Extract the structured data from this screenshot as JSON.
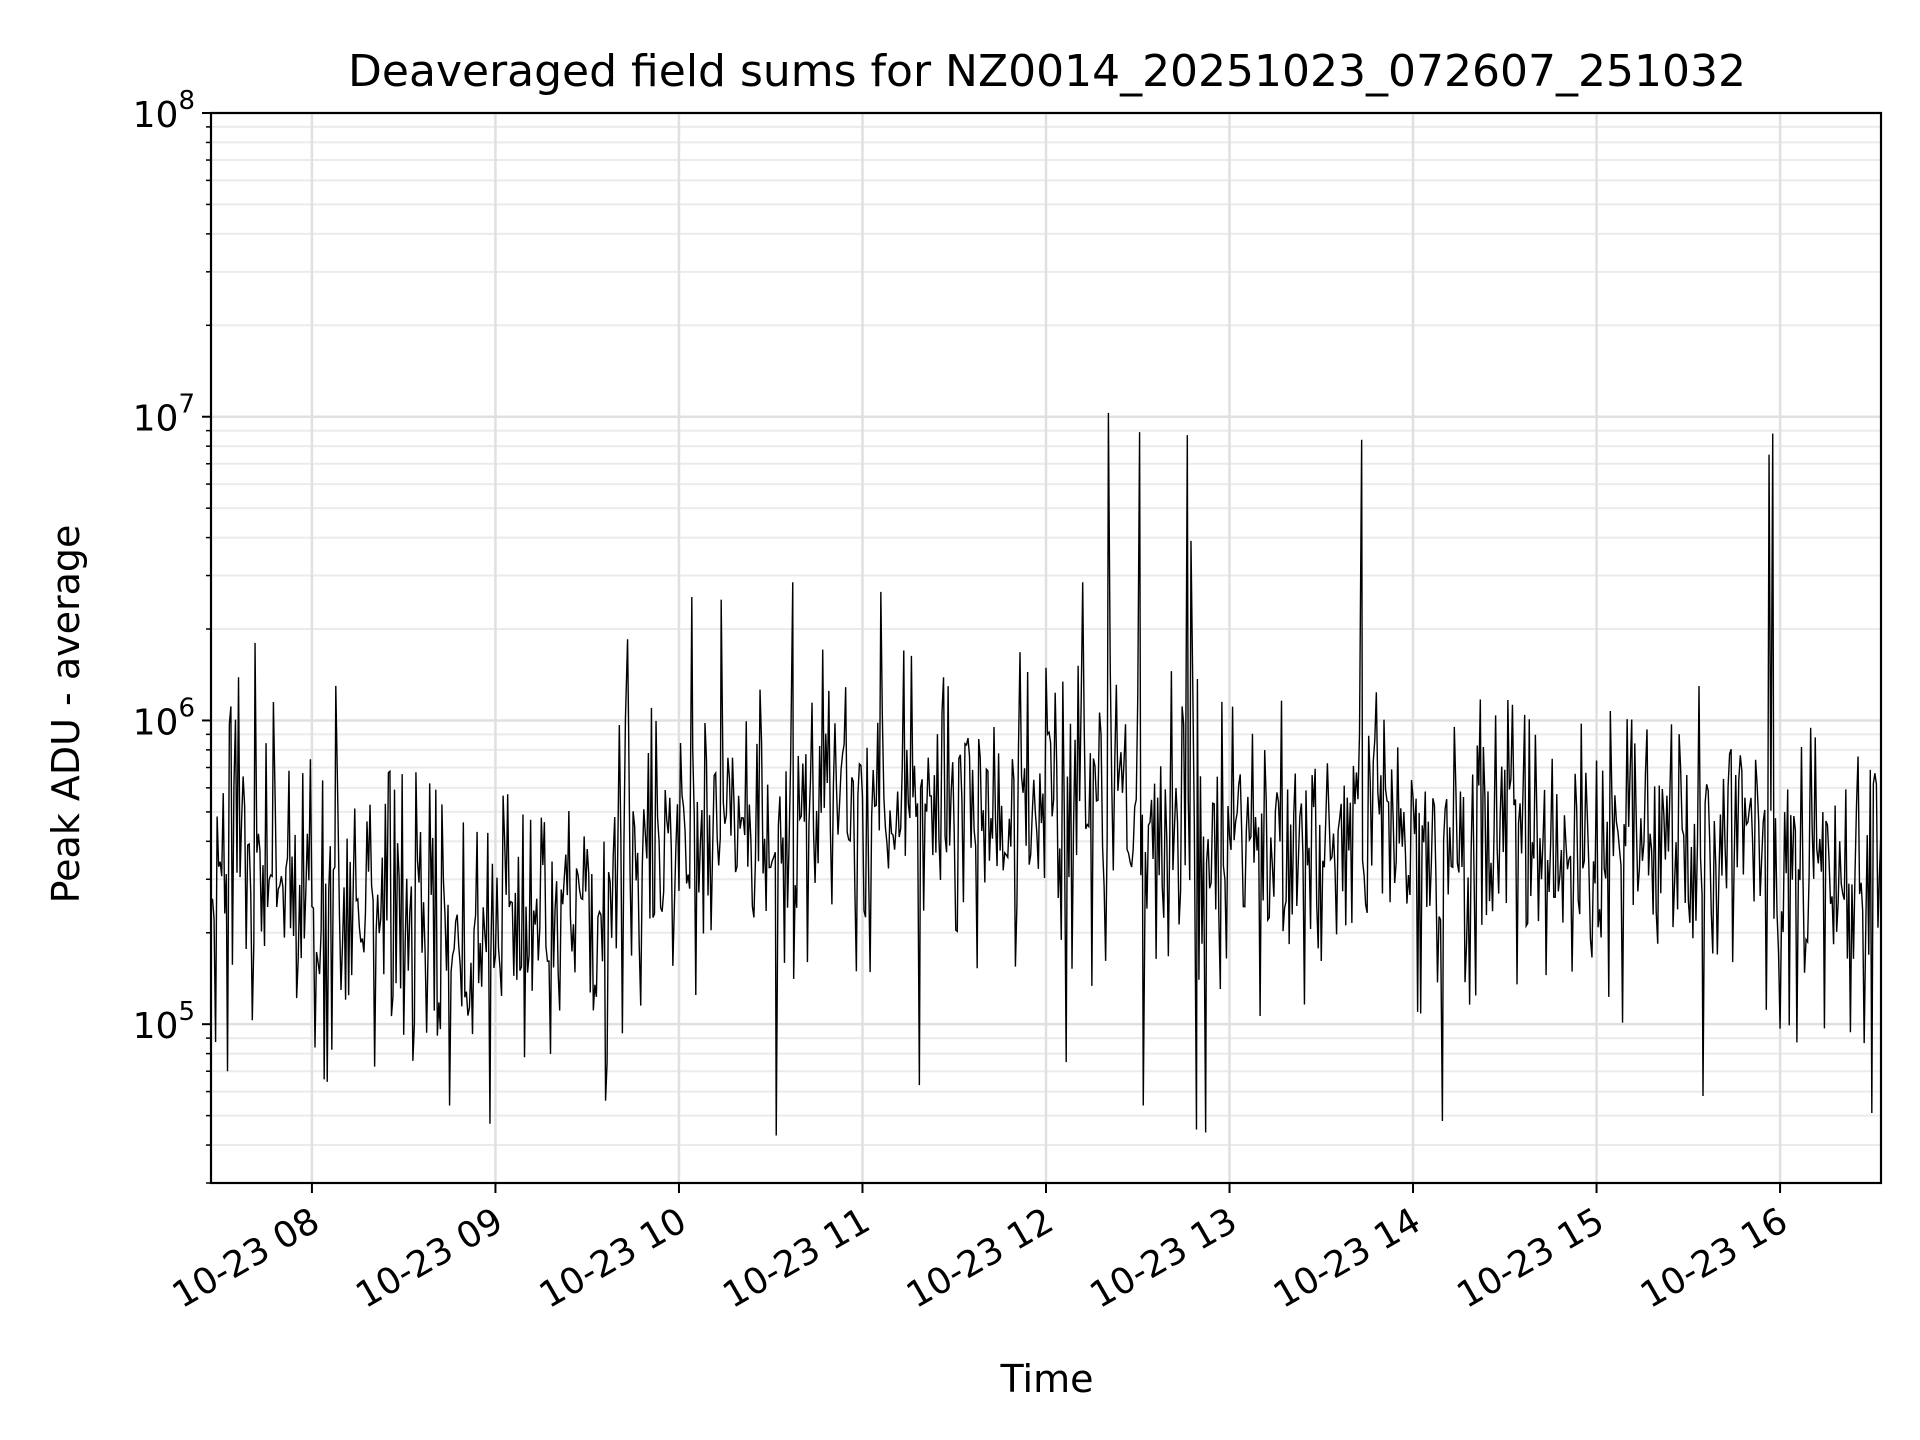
{
  "chart_data": {
    "type": "line",
    "title": "Deaveraged field sums for NZ0014_20251023_072607_251032",
    "xlabel": "Time",
    "ylabel": "Peak ADU - average",
    "yscale": "log",
    "ylim": [
      30000,
      100000000
    ],
    "xlim_hours": [
      7.45,
      16.55
    ],
    "grid": true,
    "line_color": "#000000",
    "grid_color": "#e0e0e0",
    "x_ticks": [
      {
        "hour": 8,
        "label": "10-23 08"
      },
      {
        "hour": 9,
        "label": "10-23 09"
      },
      {
        "hour": 10,
        "label": "10-23 10"
      },
      {
        "hour": 11,
        "label": "10-23 11"
      },
      {
        "hour": 12,
        "label": "10-23 12"
      },
      {
        "hour": 13,
        "label": "10-23 13"
      },
      {
        "hour": 14,
        "label": "10-23 14"
      },
      {
        "hour": 15,
        "label": "10-23 15"
      },
      {
        "hour": 16,
        "label": "10-23 16"
      }
    ],
    "y_ticks": [
      {
        "value": 100000,
        "base": "10",
        "exp": "5"
      },
      {
        "value": 1000000,
        "base": "10",
        "exp": "6"
      },
      {
        "value": 10000000,
        "base": "10",
        "exp": "7"
      },
      {
        "value": 100000000,
        "base": "10",
        "exp": "8"
      }
    ],
    "series": [
      {
        "name": "Peak ADU - average",
        "sampling": "approx. 2 samples per minute, noisy log-normal around baseline",
        "baseline": [
          {
            "hour": 7.45,
            "value": 300000
          },
          {
            "hour": 7.6,
            "value": 450000
          },
          {
            "hour": 7.75,
            "value": 280000
          },
          {
            "hour": 8.2,
            "value": 240000
          },
          {
            "hour": 8.8,
            "value": 200000
          },
          {
            "hour": 9.2,
            "value": 190000
          },
          {
            "hour": 9.6,
            "value": 270000
          },
          {
            "hour": 9.85,
            "value": 420000
          },
          {
            "hour": 10.2,
            "value": 450000
          },
          {
            "hour": 11.0,
            "value": 550000
          },
          {
            "hour": 11.6,
            "value": 600000
          },
          {
            "hour": 12.0,
            "value": 550000
          },
          {
            "hour": 12.6,
            "value": 500000
          },
          {
            "hour": 13.3,
            "value": 380000
          },
          {
            "hour": 14.0,
            "value": 420000
          },
          {
            "hour": 14.8,
            "value": 400000
          },
          {
            "hour": 15.4,
            "value": 330000
          },
          {
            "hour": 15.9,
            "value": 380000
          },
          {
            "hour": 16.3,
            "value": 300000
          },
          {
            "hour": 16.55,
            "value": 280000
          }
        ],
        "spikes": [
          {
            "hour": 7.69,
            "value": 1800000
          },
          {
            "hour": 7.79,
            "value": 1150000
          },
          {
            "hour": 8.13,
            "value": 1300000
          },
          {
            "hour": 9.72,
            "value": 1850000
          },
          {
            "hour": 10.07,
            "value": 2550000
          },
          {
            "hour": 10.23,
            "value": 2500000
          },
          {
            "hour": 10.62,
            "value": 2850000
          },
          {
            "hour": 11.1,
            "value": 2650000
          },
          {
            "hour": 12.2,
            "value": 2850000
          },
          {
            "hour": 12.34,
            "value": 10300000
          },
          {
            "hour": 12.51,
            "value": 8900000
          },
          {
            "hour": 12.77,
            "value": 8700000
          },
          {
            "hour": 12.79,
            "value": 3900000
          },
          {
            "hour": 13.72,
            "value": 8400000
          },
          {
            "hour": 15.94,
            "value": 7500000
          },
          {
            "hour": 15.96,
            "value": 8800000
          }
        ],
        "dips": [
          {
            "hour": 7.54,
            "value": 70000
          },
          {
            "hour": 8.75,
            "value": 54000
          },
          {
            "hour": 8.97,
            "value": 47000
          },
          {
            "hour": 9.6,
            "value": 56000
          },
          {
            "hour": 10.53,
            "value": 43000
          },
          {
            "hour": 11.31,
            "value": 63000
          },
          {
            "hour": 12.11,
            "value": 75000
          },
          {
            "hour": 12.53,
            "value": 54000
          },
          {
            "hour": 12.82,
            "value": 45000
          },
          {
            "hour": 12.87,
            "value": 44000
          },
          {
            "hour": 14.16,
            "value": 48000
          },
          {
            "hour": 15.58,
            "value": 58000
          },
          {
            "hour": 16.5,
            "value": 51000
          }
        ]
      }
    ]
  }
}
